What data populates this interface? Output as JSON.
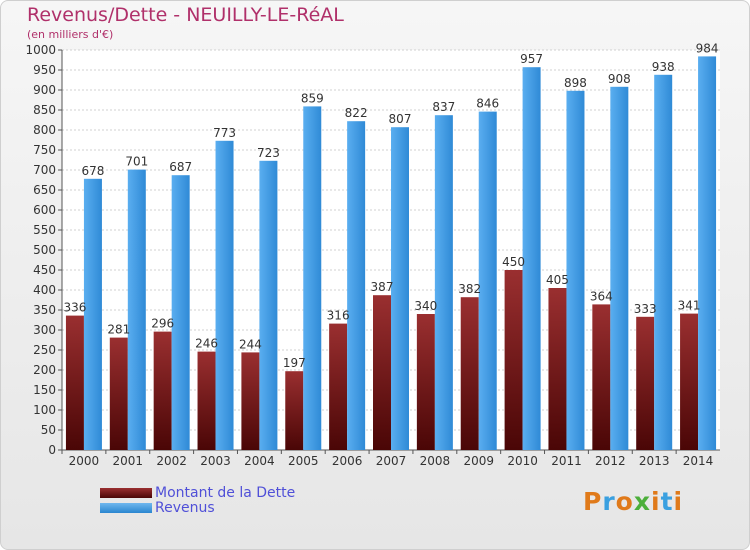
{
  "chart_data": {
    "type": "bar",
    "title": "Revenus/Dette - NEUILLY-LE-RéAL",
    "subtitle": "(en milliers d'€)",
    "categories": [
      "2000",
      "2001",
      "2002",
      "2003",
      "2004",
      "2005",
      "2006",
      "2007",
      "2008",
      "2009",
      "2010",
      "2011",
      "2012",
      "2013",
      "2014"
    ],
    "series": [
      {
        "name": "Montant de la Dette",
        "color": "#7a1a1c",
        "values": [
          336,
          281,
          296,
          246,
          244,
          197,
          316,
          387,
          340,
          382,
          450,
          405,
          364,
          333,
          341
        ]
      },
      {
        "name": "Revenus",
        "color": "#4aa3e6",
        "values": [
          678,
          701,
          687,
          773,
          723,
          859,
          822,
          807,
          837,
          846,
          957,
          898,
          908,
          938,
          984
        ]
      }
    ],
    "ylim": [
      0,
      1000
    ],
    "yticks": [
      0,
      50,
      100,
      150,
      200,
      250,
      300,
      350,
      400,
      450,
      500,
      550,
      600,
      650,
      700,
      750,
      800,
      850,
      900,
      950,
      1000
    ],
    "grid": true,
    "legend": "bottom-left"
  },
  "logo": {
    "text": "Proxiti",
    "colors": [
      "#e07a1a",
      "#3aa0e0",
      "#e07a1a",
      "#4caf3a",
      "#e07a1a",
      "#3aa0e0",
      "#e07a1a"
    ]
  }
}
